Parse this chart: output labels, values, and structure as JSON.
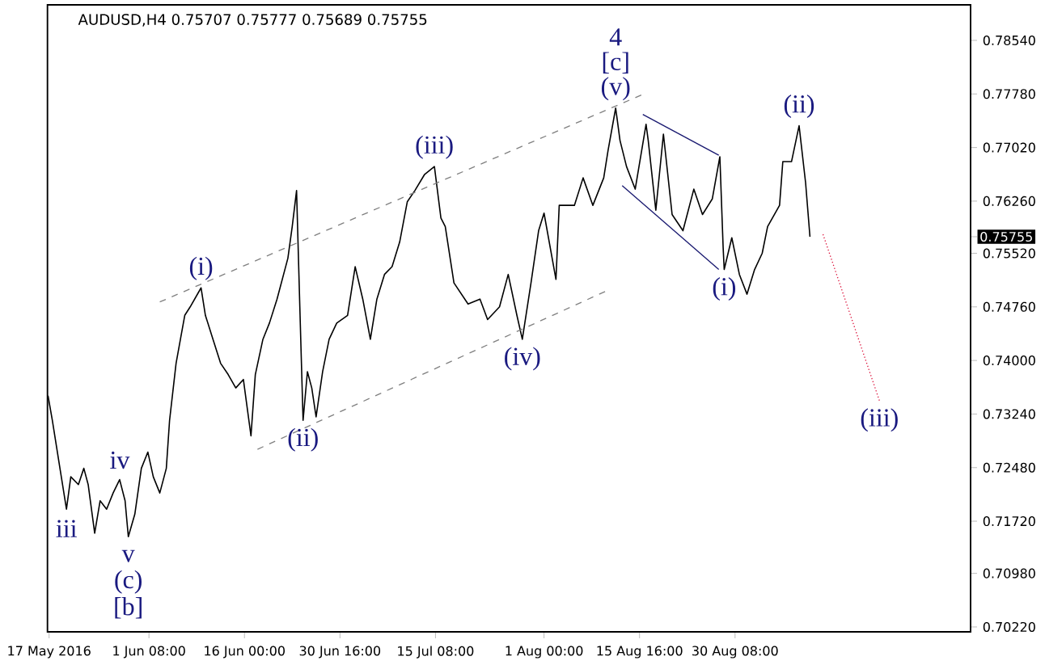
{
  "chart_data": {
    "type": "line",
    "title": "AUDUSD,H4  0.75707 0.75777 0.75689 0.75755",
    "x": [
      "2016-05-16T20:00",
      "2016-05-17T12:00",
      "2016-05-18T16:00",
      "2016-05-19T16:00",
      "2016-05-20T08:00",
      "2016-05-21T12:00",
      "2016-05-22T08:00",
      "2016-05-23T00:00",
      "2016-05-24T00:00",
      "2016-05-24T20:00",
      "2016-05-25T20:00",
      "2016-05-26T20:00",
      "2016-05-27T20:00",
      "2016-05-28T16:00",
      "2016-05-29T04:00",
      "2016-05-30T04:00",
      "2016-05-31T04:00",
      "2016-06-01T04:00",
      "2016-06-02T00:00",
      "2016-06-03T00:00",
      "2016-06-04T00:00",
      "2016-06-04T12:00",
      "2016-06-05T12:00",
      "2016-06-06T04:00",
      "2016-06-06T20:00",
      "2016-06-07T16:00",
      "2016-06-09T08:00",
      "2016-06-10T00:00",
      "2016-06-11T04:00",
      "2016-06-12T08:00",
      "2016-06-13T12:00",
      "2016-06-14T16:00",
      "2016-06-15T20:00",
      "2016-06-17T00:00",
      "2016-06-17T16:00",
      "2016-06-18T20:00",
      "2016-06-19T20:00",
      "2016-06-21T00:00",
      "2016-06-22T16:00",
      "2016-06-23T08:00",
      "2016-06-24T00:00",
      "2016-06-24T12:00",
      "2016-06-25T00:00",
      "2016-06-25T16:00",
      "2016-06-26T08:00",
      "2016-06-27T00:00",
      "2016-06-28T00:00",
      "2016-06-29T00:00",
      "2016-06-30T04:00",
      "2016-07-01T20:00",
      "2016-07-03T00:00",
      "2016-07-04T04:00",
      "2016-07-05T08:00",
      "2016-07-06T08:00",
      "2016-07-07T12:00",
      "2016-07-08T16:00",
      "2016-07-09T20:00",
      "2016-07-11T00:00",
      "2016-07-12T04:00",
      "2016-07-13T16:00",
      "2016-07-15T04:00",
      "2016-07-16T04:00",
      "2016-07-16T20:00",
      "2016-07-18T04:00",
      "2016-07-20T08:00",
      "2016-07-22T04:00",
      "2016-07-23T08:00",
      "2016-07-25T04:00",
      "2016-07-26T12:00",
      "2016-07-27T20:00",
      "2016-07-28T16:00",
      "2016-07-30T00:00",
      "2016-07-31T04:00",
      "2016-08-01T00:00",
      "2016-08-02T20:00",
      "2016-08-03T08:00",
      "2016-08-05T16:00",
      "2016-08-07T00:00",
      "2016-08-08T12:00",
      "2016-08-10T04:00",
      "2016-08-10T20:00",
      "2016-08-12T00:00",
      "2016-08-12T16:00",
      "2016-08-13T16:00",
      "2016-08-15T00:00",
      "2016-08-16T16:00",
      "2016-08-17T00:00",
      "2016-08-18T04:00",
      "2016-08-19T08:00",
      "2016-08-20T16:00",
      "2016-08-22T08:00",
      "2016-08-24T00:00",
      "2016-08-25T08:00",
      "2016-08-26T20:00",
      "2016-08-28T00:00",
      "2016-08-28T12:00",
      "2016-08-28T16:00",
      "2016-08-29T20:00",
      "2016-08-31T00:00",
      "2016-09-01T04:00",
      "2016-09-02T08:00",
      "2016-09-03T12:00",
      "2016-09-04T08:00",
      "2016-09-06T04:00",
      "2016-09-06T16:00",
      "2016-09-08T00:00",
      "2016-09-09T04:00",
      "2016-09-10T04:00",
      "2016-09-10T20:00"
    ],
    "series": [
      {
        "color": "#000000",
        "line_style": "solid",
        "values": [
          0.735,
          0.7315,
          0.7247,
          0.7189,
          0.7235,
          0.7224,
          0.7247,
          0.7224,
          0.7155,
          0.7201,
          0.7189,
          0.7212,
          0.7231,
          0.7201,
          0.715,
          0.7182,
          0.7247,
          0.727,
          0.7235,
          0.7212,
          0.7247,
          0.7315,
          0.7396,
          0.743,
          0.7464,
          0.7476,
          0.7503,
          0.7464,
          0.743,
          0.7396,
          0.738,
          0.7361,
          0.7373,
          0.7293,
          0.738,
          0.743,
          0.7453,
          0.7487,
          0.7545,
          0.759,
          0.7641,
          0.7476,
          0.7315,
          0.7384,
          0.7361,
          0.732,
          0.7384,
          0.743,
          0.7453,
          0.7464,
          0.7533,
          0.7487,
          0.743,
          0.7487,
          0.7522,
          0.7533,
          0.7568,
          0.7625,
          0.7641,
          0.7664,
          0.7675,
          0.7602,
          0.759,
          0.751,
          0.748,
          0.7487,
          0.7458,
          0.7476,
          0.7522,
          0.7464,
          0.743,
          0.751,
          0.7584,
          0.7609,
          0.7515,
          0.762,
          0.762,
          0.7659,
          0.762,
          0.7659,
          0.7698,
          0.7758,
          0.7712,
          0.7675,
          0.7643,
          0.7735,
          0.7712,
          0.7613,
          0.7721,
          0.7607,
          0.7584,
          0.7643,
          0.7607,
          0.7629,
          0.7689,
          0.7561,
          0.7529,
          0.7574,
          0.7522,
          0.7494,
          0.7529,
          0.7552,
          0.759,
          0.762,
          0.7682,
          0.7682,
          0.7733,
          0.7652,
          0.75755
        ]
      },
      {
        "type": "line",
        "color": "#808080",
        "line_style": "dashed",
        "x": [
          "2016-06-03T00:00",
          "2016-08-16T08:00"
        ],
        "values": [
          0.7483,
          0.7778
        ]
      },
      {
        "type": "line",
        "color": "#808080",
        "line_style": "dashed",
        "x": [
          "2016-06-18T00:00",
          "2016-08-10T16:00"
        ],
        "values": [
          0.7274,
          0.7499
        ]
      },
      {
        "type": "line",
        "color": "#191970",
        "line_style": "solid",
        "x": [
          "2016-08-16T04:00",
          "2016-08-27T20:00"
        ],
        "values": [
          0.7749,
          0.7691
        ]
      },
      {
        "type": "line",
        "color": "#191970",
        "line_style": "solid",
        "x": [
          "2016-08-13T00:00",
          "2016-08-27T20:00"
        ],
        "values": [
          0.7648,
          0.7529
        ]
      },
      {
        "type": "line",
        "color": "#dc143c",
        "line_style": "dotted",
        "x": [
          "2016-09-12T20:00",
          "2016-09-21T12:00"
        ],
        "values": [
          0.7579,
          0.7343
        ]
      }
    ],
    "xlim": [
      "2016-05-16T18:00",
      "2016-10-05T12:00"
    ],
    "ylim": [
      0.70151,
      0.79044
    ],
    "xticks": [
      {
        "value": "2016-05-17T00:00",
        "label": "17 May 2016"
      },
      {
        "value": "2016-06-01T08:00",
        "label": "1 Jun 08:00"
      },
      {
        "value": "2016-06-16T00:00",
        "label": "16 Jun 00:00"
      },
      {
        "value": "2016-06-30T16:00",
        "label": "30 Jun 16:00"
      },
      {
        "value": "2016-07-15T08:00",
        "label": "15 Jul 08:00"
      },
      {
        "value": "2016-08-01T00:00",
        "label": "1 Aug 00:00"
      },
      {
        "value": "2016-08-15T16:00",
        "label": "15 Aug 16:00"
      },
      {
        "value": "2016-08-30T08:00",
        "label": "30 Aug 08:00"
      }
    ],
    "yticks": [
      {
        "value": 0.7854,
        "label": "0.78540"
      },
      {
        "value": 0.7778,
        "label": "0.77780"
      },
      {
        "value": 0.7702,
        "label": "0.77020"
      },
      {
        "value": 0.7626,
        "label": "0.76260"
      },
      {
        "value": 0.75755,
        "label": "0.75755"
      },
      {
        "value": 0.7552,
        "label": "0.75520"
      },
      {
        "value": 0.7476,
        "label": "0.74760"
      },
      {
        "value": 0.74,
        "label": "0.74000"
      },
      {
        "value": 0.7324,
        "label": "0.73240"
      },
      {
        "value": 0.7248,
        "label": "0.72480"
      },
      {
        "value": 0.7172,
        "label": "0.71720"
      },
      {
        "value": 0.7098,
        "label": "0.70980"
      },
      {
        "value": 0.7022,
        "label": "0.70220"
      }
    ],
    "annotations": [
      {
        "text": "4",
        "x": "2016-08-12T00:00",
        "y": 0.7758
      },
      {
        "text": "[c]",
        "x": "2016-08-12T00:00",
        "y": 0.7758
      },
      {
        "text": "(v)",
        "x": "2016-08-12T00:00",
        "y": 0.7758
      },
      {
        "text": "(iii)",
        "x": "2016-07-15T04:00",
        "y": 0.7675
      },
      {
        "text": "(i)",
        "x": "2016-06-09T08:00",
        "y": 0.7503
      },
      {
        "text": "(ii)",
        "x": "2016-06-25T00:00",
        "y": 0.7315
      },
      {
        "text": "(iv)",
        "x": "2016-07-28T16:00",
        "y": 0.743
      },
      {
        "text": "iii",
        "x": "2016-05-19T16:00",
        "y": 0.7189
      },
      {
        "text": "iv",
        "x": "2016-05-27T20:00",
        "y": 0.7231
      },
      {
        "text": "v",
        "x": "2016-05-29T04:00",
        "y": 0.715
      },
      {
        "text": "(c)",
        "x": "2016-05-29T04:00",
        "y": 0.715
      },
      {
        "text": "[b]",
        "x": "2016-05-29T04:00",
        "y": 0.715
      },
      {
        "text": "(i)",
        "x": "2016-08-28T16:00",
        "y": 0.7529
      },
      {
        "text": "(ii)",
        "x": "2016-09-09T04:00",
        "y": 0.7733
      },
      {
        "text": "(iii)",
        "x": "2016-09-21T12:00",
        "y": 0.7343
      }
    ]
  }
}
